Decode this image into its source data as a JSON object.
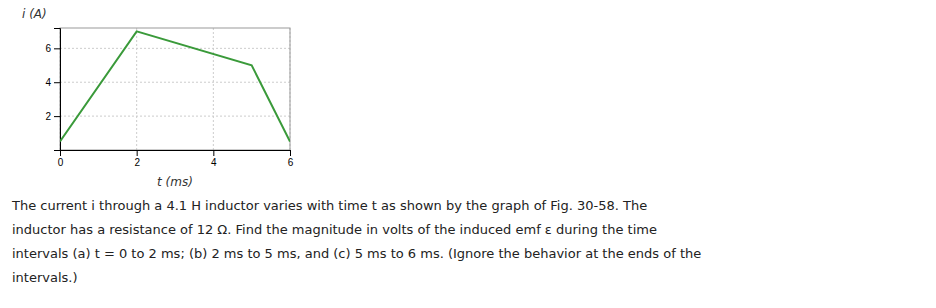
{
  "chart_data": {
    "type": "line",
    "x": [
      0,
      2,
      5,
      6
    ],
    "values": [
      0.5,
      7,
      5,
      0.5
    ],
    "color": "#3a9a3a",
    "xlim": [
      0,
      6
    ],
    "ylim": [
      0,
      7.2
    ],
    "xticks": [
      0,
      2,
      4,
      6
    ],
    "yticks": [
      2,
      4,
      6
    ],
    "xlabel": "t (ms)",
    "ylabel": "i (A)",
    "grid": true,
    "annotation": "The current i through a 4.1 H inductor varies with time t as shown by the graph of Fig. 30-58. The\ninductor has a resistance of 12 Ω. Find the magnitude in volts of the induced emf ε during the time\nintervals (a) t = 0 to 2 ms; (b) 2 ms to 5 ms, and (c) 5 ms to 6 ms. (Ignore the behavior at the ends of the\nintervals.)"
  }
}
